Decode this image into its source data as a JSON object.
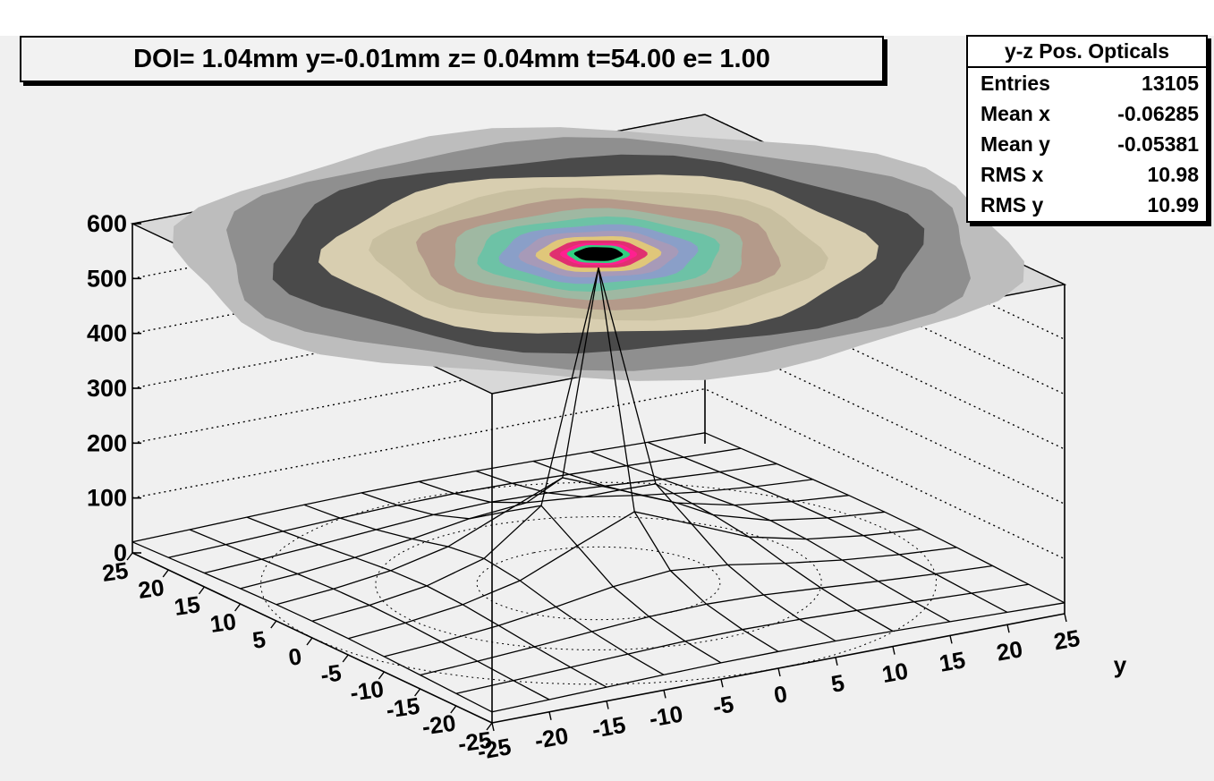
{
  "title": "DOI= 1.04mm y=-0.01mm z= 0.04mm t=54.00 e= 1.00",
  "stats": {
    "name": "y-z Pos. Opticals",
    "rows": [
      {
        "label": "Entries",
        "value": "13105"
      },
      {
        "label": "Mean x",
        "value": "-0.06285"
      },
      {
        "label": "Mean y",
        "value": "-0.05381"
      },
      {
        "label": "RMS x",
        "value": "10.98"
      },
      {
        "label": "RMS y",
        "value": "10.99"
      }
    ]
  },
  "chart_data": {
    "type": "surface",
    "zlim": [
      0,
      600
    ],
    "xlim": [
      -25,
      25
    ],
    "ylim": [
      -25,
      25
    ],
    "z_ticks": [
      "0",
      "100",
      "200",
      "300",
      "400",
      "500",
      "600"
    ],
    "x_ticks": [
      "25",
      "20",
      "15",
      "10",
      "5",
      "0",
      "-5",
      "-10",
      "-15",
      "-20",
      "-25"
    ],
    "y_ticks": [
      "-25",
      "-20",
      "-15",
      "-10",
      "-5",
      "0",
      "5",
      "10",
      "15",
      "20",
      "25"
    ],
    "y_axis_label": "y",
    "peak_value": 575,
    "grid": true,
    "contour_on_top": true,
    "colors": {
      "plot_background": "#f0f0f0",
      "peak": "#000000"
    }
  }
}
